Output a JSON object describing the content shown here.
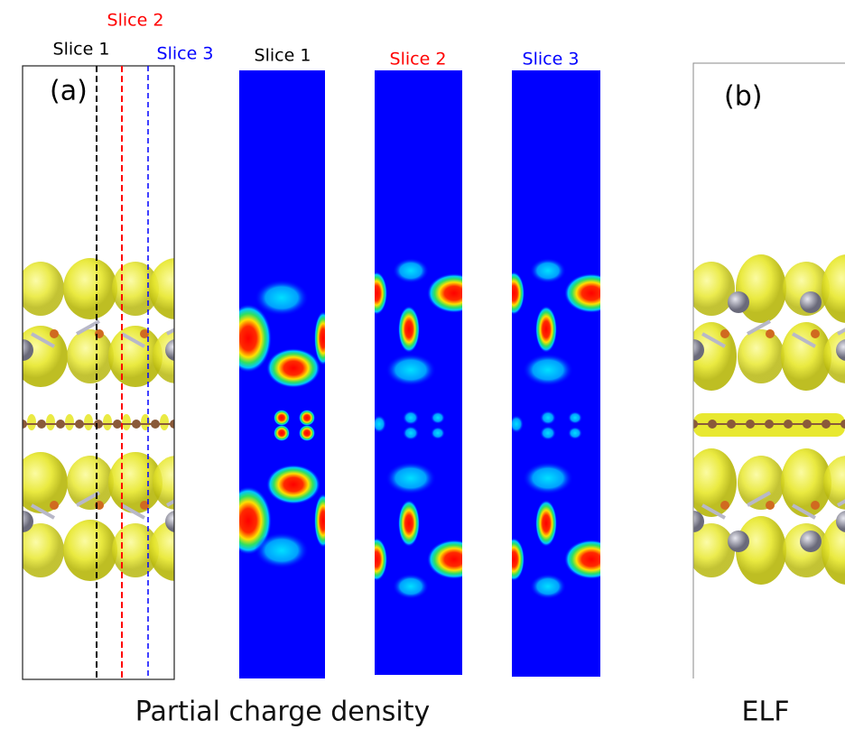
{
  "panel_a": {
    "label": "(a)",
    "slices": [
      "Slice 1",
      "Slice 2",
      "Slice 3"
    ]
  },
  "slice_maps": [
    {
      "title": "Slice 1"
    },
    {
      "title": "Slice 2"
    },
    {
      "title": "Slice 3"
    }
  ],
  "panel_b": {
    "label": "(b)"
  },
  "captions": {
    "left": "Partial charge density",
    "right": "ELF"
  }
}
